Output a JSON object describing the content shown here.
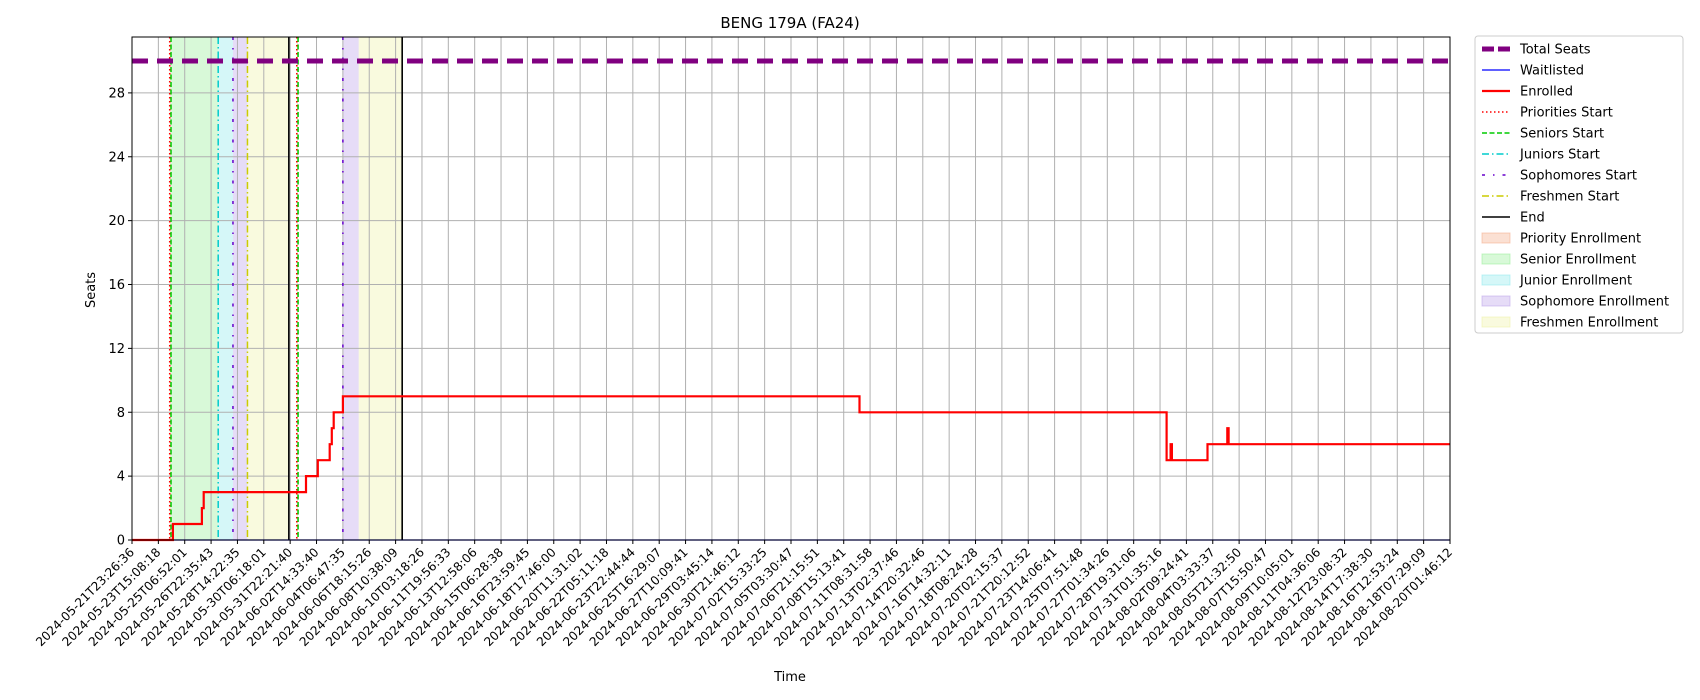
{
  "chart_data": {
    "type": "line",
    "title": "BENG 179A (FA24)",
    "xlabel": "Time",
    "ylabel": "Seats",
    "ylim": [
      0,
      30
    ],
    "yticks": [
      0,
      4,
      8,
      12,
      16,
      20,
      24,
      28
    ],
    "grid": true,
    "legend_position": "outside-right",
    "xtick_labels": [
      "2024-05-21T23:26:36",
      "2024-05-23T15:08:18",
      "2024-05-25T06:52:01",
      "2024-05-26T22:35:43",
      "2024-05-28T14:22:35",
      "2024-05-30T06:18:01",
      "2024-05-31T22:21:40",
      "2024-06-02T14:33:40",
      "2024-06-04T06:47:35",
      "2024-06-06T18:15:26",
      "2024-06-08T10:38:09",
      "2024-06-10T03:18:26",
      "2024-06-11T19:56:33",
      "2024-06-13T12:58:06",
      "2024-06-15T06:28:38",
      "2024-06-16T23:59:45",
      "2024-06-18T17:46:00",
      "2024-06-20T11:31:02",
      "2024-06-22T05:11:18",
      "2024-06-23T22:44:44",
      "2024-06-25T16:29:07",
      "2024-06-27T10:09:41",
      "2024-06-29T03:45:14",
      "2024-06-30T21:46:12",
      "2024-07-02T15:33:25",
      "2024-07-05T03:30:47",
      "2024-07-06T21:15:51",
      "2024-07-08T15:13:41",
      "2024-07-11T08:31:58",
      "2024-07-13T02:37:46",
      "2024-07-14T20:32:46",
      "2024-07-16T14:32:11",
      "2024-07-18T08:24:28",
      "2024-07-20T02:15:37",
      "2024-07-21T20:12:52",
      "2024-07-23T14:06:41",
      "2024-07-25T07:51:48",
      "2024-07-27T01:34:26",
      "2024-07-28T19:31:06",
      "2024-07-31T01:35:16",
      "2024-08-02T09:24:41",
      "2024-08-04T03:33:37",
      "2024-08-05T21:32:50",
      "2024-08-07T15:50:47",
      "2024-08-09T10:05:01",
      "2024-08-11T04:36:06",
      "2024-08-12T23:08:32",
      "2024-08-14T17:38:30",
      "2024-08-16T12:53:24",
      "2024-08-18T07:29:09",
      "2024-08-20T01:46:12"
    ],
    "series": [
      {
        "name": "Total Seats",
        "color": "#800080",
        "style": "dashed-thick",
        "values": [
          [
            0,
            30
          ],
          [
            50,
            30
          ]
        ]
      },
      {
        "name": "Waitlisted",
        "color": "#0000ff",
        "style": "solid",
        "values": [
          [
            0,
            0
          ],
          [
            50,
            0
          ]
        ]
      },
      {
        "name": "Enrolled",
        "color": "#ff0000",
        "style": "solid-step",
        "values": [
          [
            0,
            0
          ],
          [
            1.55,
            0
          ],
          [
            1.55,
            1
          ],
          [
            2.65,
            1
          ],
          [
            2.65,
            2
          ],
          [
            2.72,
            2
          ],
          [
            2.72,
            3
          ],
          [
            6.6,
            3
          ],
          [
            6.6,
            4
          ],
          [
            7.05,
            4
          ],
          [
            7.05,
            5
          ],
          [
            7.5,
            5
          ],
          [
            7.5,
            6
          ],
          [
            7.58,
            6
          ],
          [
            7.58,
            7
          ],
          [
            7.65,
            7
          ],
          [
            7.65,
            8
          ],
          [
            8.0,
            8
          ],
          [
            8.0,
            9
          ],
          [
            27.6,
            9
          ],
          [
            27.6,
            8
          ],
          [
            39.25,
            8
          ],
          [
            39.25,
            5
          ],
          [
            39.4,
            5
          ],
          [
            39.4,
            6
          ],
          [
            39.45,
            6
          ],
          [
            39.45,
            5
          ],
          [
            40.8,
            5
          ],
          [
            40.8,
            6
          ],
          [
            41.55,
            6
          ],
          [
            41.55,
            7
          ],
          [
            41.6,
            7
          ],
          [
            41.6,
            6
          ],
          [
            50,
            6
          ]
        ]
      }
    ],
    "markers": [
      {
        "name": "Priorities Start",
        "color": "#ff0000",
        "style": "dotted",
        "x": 1.43
      },
      {
        "name": "Seniors Start",
        "color": "#00cc00",
        "style": "dashed",
        "x": 1.48
      },
      {
        "name": "Juniors Start",
        "color": "#00cccc",
        "style": "dashdot",
        "x": 3.27
      },
      {
        "name": "Sophomores Start",
        "color": "#6600cc",
        "style": "dashdot-sparse",
        "x": 3.83
      },
      {
        "name": "Freshmen Start",
        "color": "#cccc00",
        "style": "dashdot",
        "x": 4.38
      },
      {
        "name": "End",
        "color": "#000000",
        "style": "solid",
        "x": 5.95
      }
    ],
    "extra_markers": [
      {
        "color": "#ff0000",
        "style": "dotted",
        "x": 6.25
      },
      {
        "color": "#00cc00",
        "style": "dashed",
        "x": 6.3
      },
      {
        "color": "#6600cc",
        "style": "dashdot-sparse",
        "x": 8.0
      },
      {
        "color": "#000000",
        "style": "solid",
        "x": 10.25
      }
    ],
    "regions": [
      {
        "name": "Priority Enrollment",
        "color": "#f4a582",
        "from": 1.43,
        "to": 1.48
      },
      {
        "name": "Senior Enrollment",
        "color": "#90ee90",
        "from": 1.48,
        "to": 3.27
      },
      {
        "name": "Junior Enrollment",
        "color": "#87e8ec",
        "from": 3.27,
        "to": 3.83
      },
      {
        "name": "Sophomore Enrollment",
        "color": "#b79ce8",
        "from": 3.83,
        "to": 4.38
      },
      {
        "name": "Freshmen Enrollment",
        "color": "#eef0a0",
        "from": 4.38,
        "to": 5.95
      }
    ],
    "extra_regions": [
      {
        "color": "#f4a582",
        "from": 6.25,
        "to": 6.3
      },
      {
        "color": "#b79ce8",
        "from": 8.0,
        "to": 8.6
      },
      {
        "color": "#eef0a0",
        "from": 8.6,
        "to": 10.25
      }
    ]
  }
}
